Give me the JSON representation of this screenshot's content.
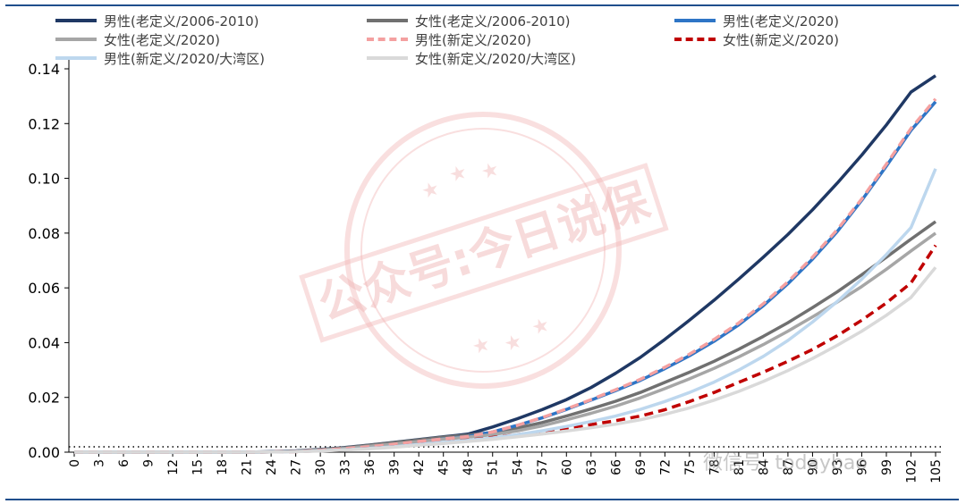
{
  "chart_data": {
    "type": "line",
    "title": "",
    "xlabel": "",
    "ylabel": "",
    "x": [
      0,
      3,
      6,
      9,
      12,
      15,
      18,
      21,
      24,
      27,
      30,
      33,
      36,
      39,
      42,
      45,
      48,
      51,
      54,
      57,
      60,
      63,
      66,
      69,
      72,
      75,
      78,
      81,
      84,
      87,
      90,
      93,
      96,
      99,
      102,
      105
    ],
    "ylim": [
      0,
      0.14
    ],
    "yticks": [
      "0.00",
      "0.02",
      "0.04",
      "0.06",
      "0.08",
      "0.10",
      "0.12",
      "0.14"
    ],
    "series": [
      {
        "name": "男性(老定义/2006-2010)",
        "color": "#1f3864",
        "dash": "solid",
        "values": [
          0,
          0,
          0,
          0,
          0,
          0,
          0,
          0,
          0.0002,
          0.0005,
          0.001,
          0.0017,
          0.0026,
          0.0036,
          0.0046,
          0.0056,
          0.0066,
          0.0092,
          0.0122,
          0.0155,
          0.0192,
          0.0236,
          0.0288,
          0.0346,
          0.0412,
          0.0482,
          0.0555,
          0.0632,
          0.0712,
          0.0795,
          0.0885,
          0.0982,
          0.1085,
          0.1195,
          0.1315,
          0.1375
        ]
      },
      {
        "name": "女性(老定义/2006-2010)",
        "color": "#707070",
        "dash": "solid",
        "values": [
          0,
          0,
          0,
          0,
          0,
          0,
          0,
          0,
          0.0001,
          0.0004,
          0.0009,
          0.0016,
          0.0025,
          0.0035,
          0.0045,
          0.0055,
          0.0062,
          0.0072,
          0.0088,
          0.0108,
          0.0132,
          0.0158,
          0.0186,
          0.0218,
          0.0255,
          0.0292,
          0.0332,
          0.0376,
          0.0423,
          0.0473,
          0.0528,
          0.0585,
          0.0648,
          0.0712,
          0.0778,
          0.0842
        ]
      },
      {
        "name": "男性(老定义/2020)",
        "color": "#2e75c6",
        "dash": "solid",
        "values": [
          0,
          0,
          0,
          0,
          0,
          0,
          0,
          0,
          0.0001,
          0.0003,
          0.0007,
          0.0013,
          0.002,
          0.0029,
          0.0039,
          0.0049,
          0.0057,
          0.0074,
          0.0098,
          0.0125,
          0.0156,
          0.019,
          0.0225,
          0.0262,
          0.0305,
          0.0352,
          0.0405,
          0.0465,
          0.0535,
          0.0615,
          0.0705,
          0.0805,
          0.092,
          0.1045,
          0.1175,
          0.128
        ]
      },
      {
        "name": "女性(老定义/2020)",
        "color": "#a6a6a6",
        "dash": "solid",
        "values": [
          0,
          0,
          0,
          0,
          0,
          0,
          0,
          0,
          0.0001,
          0.0003,
          0.0008,
          0.0014,
          0.0022,
          0.003,
          0.0039,
          0.0048,
          0.0055,
          0.0064,
          0.0078,
          0.0096,
          0.0118,
          0.0142,
          0.0168,
          0.0198,
          0.0232,
          0.0268,
          0.0306,
          0.0348,
          0.0393,
          0.0442,
          0.0494,
          0.0548,
          0.0605,
          0.0668,
          0.0735,
          0.08
        ]
      },
      {
        "name": "男性(新定义/2020)",
        "color": "#f4a0a0",
        "dash": "dash",
        "values": [
          0,
          0,
          0,
          0,
          0,
          0,
          0,
          0,
          0.0001,
          0.0003,
          0.0007,
          0.0013,
          0.002,
          0.0029,
          0.0039,
          0.0049,
          0.0057,
          0.0074,
          0.0098,
          0.0126,
          0.0158,
          0.0192,
          0.0228,
          0.0266,
          0.031,
          0.0358,
          0.0412,
          0.0472,
          0.0542,
          0.0622,
          0.0712,
          0.0812,
          0.0925,
          0.1052,
          0.1182,
          0.129
        ]
      },
      {
        "name": "女性(新定义/2020)",
        "color": "#c00000",
        "dash": "dash",
        "values": [
          0,
          0,
          0,
          0,
          0,
          0,
          0,
          0,
          0.0001,
          0.0002,
          0.0005,
          0.0009,
          0.0014,
          0.002,
          0.0028,
          0.0036,
          0.0044,
          0.0054,
          0.0064,
          0.0076,
          0.0088,
          0.0101,
          0.0115,
          0.0132,
          0.0155,
          0.0185,
          0.0218,
          0.0255,
          0.0292,
          0.0332,
          0.0375,
          0.0425,
          0.0482,
          0.0545,
          0.0618,
          0.0755
        ]
      },
      {
        "name": "男性(新定义/2020/大湾区)",
        "color": "#bdd7ee",
        "dash": "solid",
        "values": [
          0,
          0,
          0,
          0,
          0,
          0,
          0,
          0,
          0.0001,
          0.0002,
          0.0005,
          0.0009,
          0.0014,
          0.002,
          0.0028,
          0.0036,
          0.0043,
          0.0052,
          0.0064,
          0.0078,
          0.0094,
          0.0112,
          0.0132,
          0.0156,
          0.0185,
          0.0218,
          0.0256,
          0.03,
          0.035,
          0.0408,
          0.0475,
          0.055,
          0.0632,
          0.0722,
          0.082,
          0.1035
        ]
      },
      {
        "name": "女性(新定义/2020/大湾区)",
        "color": "#d9d9d9",
        "dash": "solid",
        "values": [
          0,
          0,
          0,
          0,
          0,
          0,
          0,
          0,
          0.0001,
          0.0002,
          0.0004,
          0.0008,
          0.0012,
          0.0018,
          0.0025,
          0.0032,
          0.0039,
          0.0047,
          0.0056,
          0.0066,
          0.0077,
          0.0089,
          0.0102,
          0.0118,
          0.0138,
          0.0162,
          0.019,
          0.0222,
          0.0258,
          0.0298,
          0.0342,
          0.039,
          0.0442,
          0.05,
          0.0565,
          0.0675
        ]
      }
    ]
  },
  "watermark": {
    "stamp_text": "公众号:今日说保",
    "footer_text": "微信号: todaybao",
    "color": "#f1b8b8"
  }
}
